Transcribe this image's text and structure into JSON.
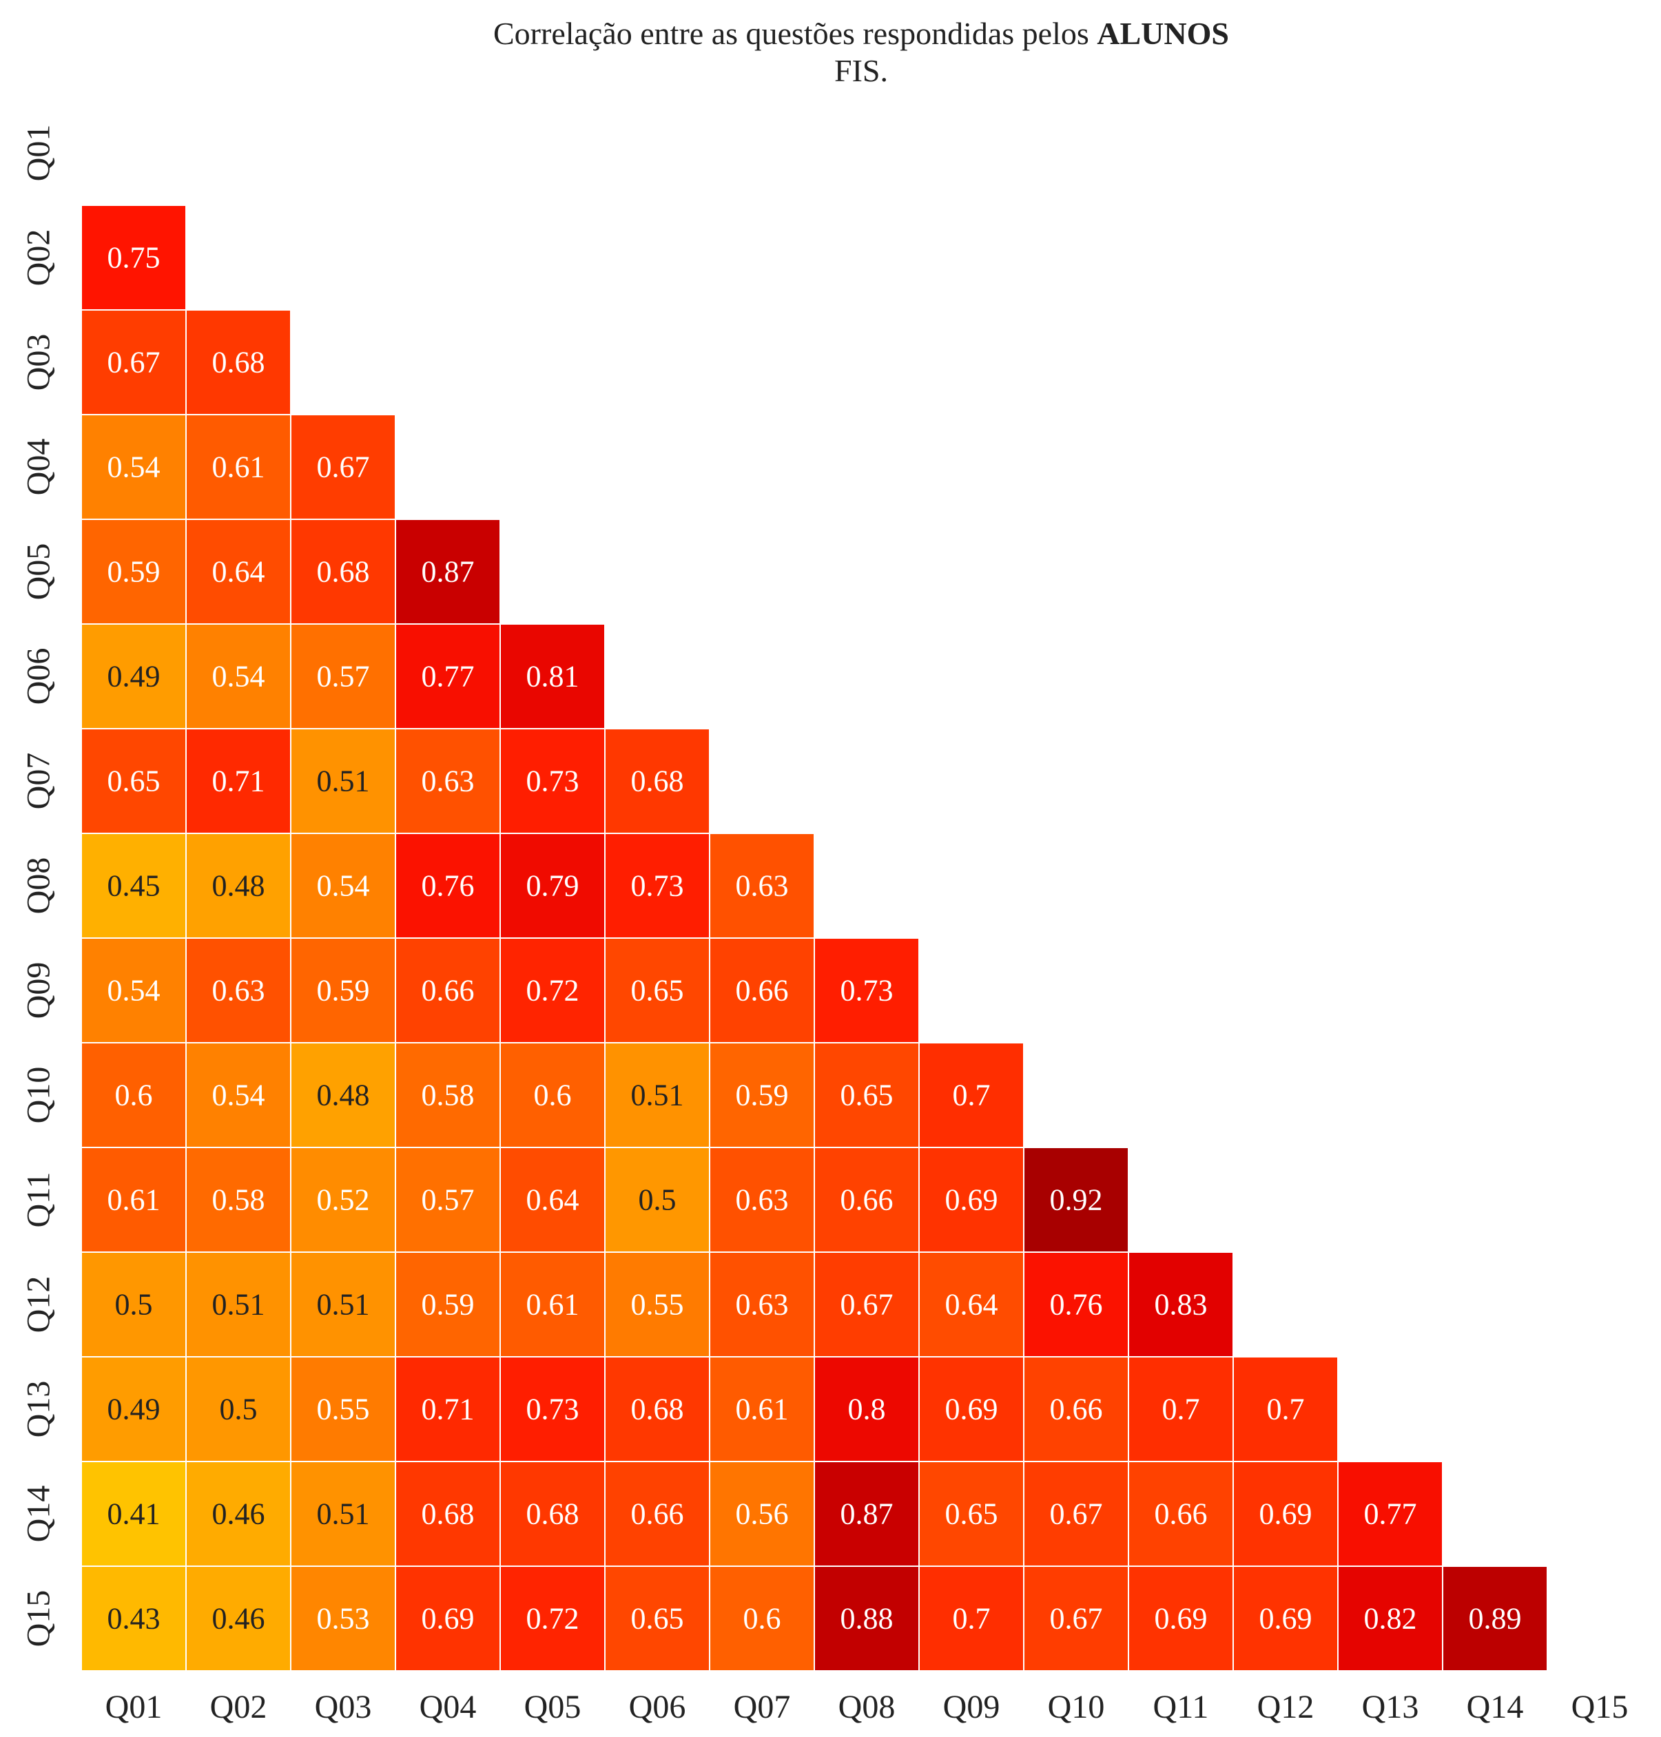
{
  "chart_data": {
    "type": "heatmap",
    "title_prefix": "Correlação entre as questões respondidas pelos",
    "title_bold": "ALUNOS",
    "title_line2": "FIS.",
    "labels": [
      "Q01",
      "Q02",
      "Q03",
      "Q04",
      "Q05",
      "Q06",
      "Q07",
      "Q08",
      "Q09",
      "Q10",
      "Q11",
      "Q12",
      "Q13",
      "Q14",
      "Q15"
    ],
    "matrix": [
      [],
      [
        0.75
      ],
      [
        0.67,
        0.68
      ],
      [
        0.54,
        0.61,
        0.67
      ],
      [
        0.59,
        0.64,
        0.68,
        0.87
      ],
      [
        0.49,
        0.54,
        0.57,
        0.77,
        0.81
      ],
      [
        0.65,
        0.71,
        0.51,
        0.63,
        0.73,
        0.68
      ],
      [
        0.45,
        0.48,
        0.54,
        0.76,
        0.79,
        0.73,
        0.63
      ],
      [
        0.54,
        0.63,
        0.59,
        0.66,
        0.72,
        0.65,
        0.66,
        0.73
      ],
      [
        0.6,
        0.54,
        0.48,
        0.58,
        0.6,
        0.51,
        0.59,
        0.65,
        0.7
      ],
      [
        0.61,
        0.58,
        0.52,
        0.57,
        0.64,
        0.5,
        0.63,
        0.66,
        0.69,
        0.92
      ],
      [
        0.5,
        0.51,
        0.51,
        0.59,
        0.61,
        0.55,
        0.63,
        0.67,
        0.64,
        0.76,
        0.83
      ],
      [
        0.49,
        0.5,
        0.55,
        0.71,
        0.73,
        0.68,
        0.61,
        0.8,
        0.69,
        0.66,
        0.7,
        0.7
      ],
      [
        0.41,
        0.46,
        0.51,
        0.68,
        0.68,
        0.66,
        0.56,
        0.87,
        0.65,
        0.67,
        0.66,
        0.69,
        0.77
      ],
      [
        0.43,
        0.46,
        0.53,
        0.69,
        0.72,
        0.65,
        0.6,
        0.88,
        0.7,
        0.67,
        0.69,
        0.69,
        0.82,
        0.89
      ]
    ],
    "mask": "upper-triangle-and-diagonal",
    "colormap": [
      "#ffc300",
      "#ff9a00",
      "#ff6a00",
      "#ff4000",
      "#ff1400",
      "#e00000",
      "#a80000"
    ],
    "value_range": [
      0.41,
      0.92
    ],
    "grid": false,
    "cell_border_color": "#ffffff"
  }
}
